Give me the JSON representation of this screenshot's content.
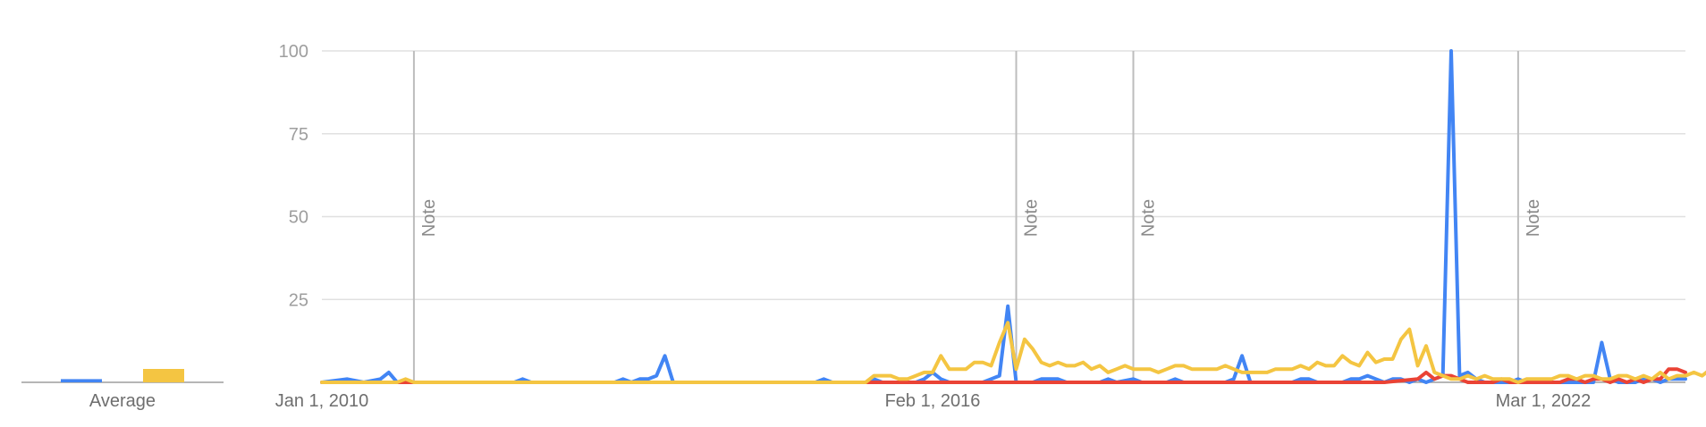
{
  "average_panel": {
    "label": "Average",
    "bars": [
      {
        "series": "blue",
        "value": 0.6
      },
      {
        "series": "yellow",
        "value": 2.5
      }
    ]
  },
  "chart_data": {
    "type": "line",
    "title": "",
    "xlabel": "",
    "ylabel": "",
    "ylim": [
      0,
      100
    ],
    "y_ticks": [
      "100",
      "75",
      "50",
      "25"
    ],
    "x_tick_labels": [
      {
        "date": "2010-01-01",
        "label": "Jan 1, 2010"
      },
      {
        "date": "2016-02-01",
        "label": "Feb 1, 2016"
      },
      {
        "date": "2022-03-01",
        "label": "Mar 1, 2022"
      }
    ],
    "x_range": [
      "2010-01-01",
      "2023-08-01"
    ],
    "grid": true,
    "annotations": [
      {
        "date": "2010-12-01",
        "label": "Note"
      },
      {
        "date": "2016-12-01",
        "label": "Note"
      },
      {
        "date": "2018-02-01",
        "label": "Note"
      },
      {
        "date": "2021-12-01",
        "label": "Note"
      }
    ],
    "series": [
      {
        "color": "#4285F4",
        "points": [
          [
            "2010-01",
            0
          ],
          [
            "2010-04",
            1
          ],
          [
            "2010-06",
            0
          ],
          [
            "2010-08",
            1
          ],
          [
            "2010-09",
            3
          ],
          [
            "2010-10",
            0
          ],
          [
            "2011-12",
            0
          ],
          [
            "2012-01",
            1
          ],
          [
            "2012-02",
            0
          ],
          [
            "2012-12",
            0
          ],
          [
            "2013-01",
            1
          ],
          [
            "2013-02",
            0
          ],
          [
            "2013-03",
            1
          ],
          [
            "2013-04",
            1
          ],
          [
            "2013-05",
            2
          ],
          [
            "2013-06",
            8
          ],
          [
            "2013-07",
            0
          ],
          [
            "2014-12",
            0
          ],
          [
            "2015-01",
            1
          ],
          [
            "2015-02",
            0
          ],
          [
            "2015-06",
            0
          ],
          [
            "2015-07",
            1
          ],
          [
            "2015-08",
            0
          ],
          [
            "2015-12",
            0
          ],
          [
            "2016-01",
            1
          ],
          [
            "2016-02",
            3
          ],
          [
            "2016-03",
            1
          ],
          [
            "2016-04",
            0
          ],
          [
            "2016-08",
            0
          ],
          [
            "2016-09",
            1
          ],
          [
            "2016-10",
            2
          ],
          [
            "2016-11",
            23
          ],
          [
            "2016-12",
            0
          ],
          [
            "2017-02",
            0
          ],
          [
            "2017-03",
            1
          ],
          [
            "2017-04",
            1
          ],
          [
            "2017-05",
            1
          ],
          [
            "2017-06",
            0
          ],
          [
            "2017-10",
            0
          ],
          [
            "2017-11",
            1
          ],
          [
            "2017-12",
            0
          ],
          [
            "2018-02",
            1
          ],
          [
            "2018-03",
            0
          ],
          [
            "2018-06",
            0
          ],
          [
            "2018-07",
            1
          ],
          [
            "2018-08",
            0
          ],
          [
            "2019-01",
            0
          ],
          [
            "2019-02",
            1
          ],
          [
            "2019-03",
            8
          ],
          [
            "2019-04",
            0
          ],
          [
            "2019-09",
            0
          ],
          [
            "2019-10",
            1
          ],
          [
            "2019-11",
            1
          ],
          [
            "2019-12",
            0
          ],
          [
            "2020-03",
            0
          ],
          [
            "2020-04",
            1
          ],
          [
            "2020-05",
            1
          ],
          [
            "2020-06",
            2
          ],
          [
            "2020-07",
            1
          ],
          [
            "2020-08",
            0
          ],
          [
            "2020-09",
            1
          ],
          [
            "2020-10",
            1
          ],
          [
            "2020-11",
            0
          ],
          [
            "2020-12",
            1
          ],
          [
            "2021-01",
            0
          ],
          [
            "2021-02",
            1
          ],
          [
            "2021-03",
            2
          ],
          [
            "2021-04",
            100
          ],
          [
            "2021-05",
            2
          ],
          [
            "2021-06",
            3
          ],
          [
            "2021-07",
            1
          ],
          [
            "2021-08",
            0
          ],
          [
            "2021-11",
            0
          ],
          [
            "2021-12",
            1
          ],
          [
            "2022-01",
            0
          ],
          [
            "2022-09",
            0
          ],
          [
            "2022-10",
            12
          ],
          [
            "2022-11",
            1
          ],
          [
            "2022-12",
            0
          ],
          [
            "2023-02",
            0
          ],
          [
            "2023-03",
            1
          ],
          [
            "2023-04",
            1
          ],
          [
            "2023-05",
            0
          ],
          [
            "2023-06",
            1
          ],
          [
            "2023-07",
            1
          ],
          [
            "2023-08",
            1
          ]
        ]
      },
      {
        "color": "#EA4335",
        "points": [
          [
            "2010-01",
            0
          ],
          [
            "2015-06",
            0
          ],
          [
            "2016-06",
            0
          ],
          [
            "2016-07",
            0
          ],
          [
            "2020-08",
            0
          ],
          [
            "2020-12",
            1
          ],
          [
            "2021-01",
            3
          ],
          [
            "2021-02",
            1
          ],
          [
            "2021-03",
            2
          ],
          [
            "2021-04",
            2
          ],
          [
            "2021-05",
            1
          ],
          [
            "2021-06",
            0
          ],
          [
            "2021-09",
            0
          ],
          [
            "2021-10",
            1
          ],
          [
            "2021-11",
            0
          ],
          [
            "2022-05",
            0
          ],
          [
            "2022-06",
            1
          ],
          [
            "2022-07",
            1
          ],
          [
            "2022-08",
            0
          ],
          [
            "2022-09",
            1
          ],
          [
            "2022-10",
            1
          ],
          [
            "2022-11",
            0
          ],
          [
            "2022-12",
            1
          ],
          [
            "2023-01",
            0
          ],
          [
            "2023-02",
            1
          ],
          [
            "2023-03",
            0
          ],
          [
            "2023-04",
            1
          ],
          [
            "2023-05",
            1
          ],
          [
            "2023-06",
            4
          ],
          [
            "2023-07",
            4
          ],
          [
            "2023-08",
            3
          ]
        ]
      },
      {
        "color": "#F4C542",
        "points": [
          [
            "2010-01",
            0
          ],
          [
            "2010-10",
            0
          ],
          [
            "2010-11",
            1
          ],
          [
            "2010-12",
            0
          ],
          [
            "2015-06",
            0
          ],
          [
            "2015-07",
            2
          ],
          [
            "2015-08",
            2
          ],
          [
            "2015-09",
            2
          ],
          [
            "2015-10",
            1
          ],
          [
            "2015-11",
            1
          ],
          [
            "2015-12",
            2
          ],
          [
            "2016-01",
            3
          ],
          [
            "2016-02",
            3
          ],
          [
            "2016-03",
            8
          ],
          [
            "2016-04",
            4
          ],
          [
            "2016-05",
            4
          ],
          [
            "2016-06",
            4
          ],
          [
            "2016-07",
            6
          ],
          [
            "2016-08",
            6
          ],
          [
            "2016-09",
            5
          ],
          [
            "2016-10",
            12
          ],
          [
            "2016-11",
            18
          ],
          [
            "2016-12",
            4
          ],
          [
            "2017-01",
            13
          ],
          [
            "2017-02",
            10
          ],
          [
            "2017-03",
            6
          ],
          [
            "2017-04",
            5
          ],
          [
            "2017-05",
            6
          ],
          [
            "2017-06",
            5
          ],
          [
            "2017-07",
            5
          ],
          [
            "2017-08",
            6
          ],
          [
            "2017-09",
            4
          ],
          [
            "2017-10",
            5
          ],
          [
            "2017-11",
            3
          ],
          [
            "2017-12",
            4
          ],
          [
            "2018-01",
            5
          ],
          [
            "2018-02",
            4
          ],
          [
            "2018-03",
            4
          ],
          [
            "2018-04",
            4
          ],
          [
            "2018-05",
            3
          ],
          [
            "2018-06",
            4
          ],
          [
            "2018-07",
            5
          ],
          [
            "2018-08",
            5
          ],
          [
            "2018-09",
            4
          ],
          [
            "2018-10",
            4
          ],
          [
            "2018-11",
            4
          ],
          [
            "2018-12",
            4
          ],
          [
            "2019-01",
            5
          ],
          [
            "2019-02",
            4
          ],
          [
            "2019-03",
            3
          ],
          [
            "2019-04",
            3
          ],
          [
            "2019-05",
            3
          ],
          [
            "2019-06",
            3
          ],
          [
            "2019-07",
            4
          ],
          [
            "2019-08",
            4
          ],
          [
            "2019-09",
            4
          ],
          [
            "2019-10",
            5
          ],
          [
            "2019-11",
            4
          ],
          [
            "2019-12",
            6
          ],
          [
            "2020-01",
            5
          ],
          [
            "2020-02",
            5
          ],
          [
            "2020-03",
            8
          ],
          [
            "2020-04",
            6
          ],
          [
            "2020-05",
            5
          ],
          [
            "2020-06",
            9
          ],
          [
            "2020-07",
            6
          ],
          [
            "2020-08",
            7
          ],
          [
            "2020-09",
            7
          ],
          [
            "2020-10",
            13
          ],
          [
            "2020-11",
            16
          ],
          [
            "2020-12",
            5
          ],
          [
            "2021-01",
            11
          ],
          [
            "2021-02",
            3
          ],
          [
            "2021-03",
            2
          ],
          [
            "2021-04",
            1
          ],
          [
            "2021-05",
            1
          ],
          [
            "2021-06",
            2
          ],
          [
            "2021-07",
            1
          ],
          [
            "2021-08",
            2
          ],
          [
            "2021-09",
            1
          ],
          [
            "2021-10",
            1
          ],
          [
            "2021-11",
            1
          ],
          [
            "2021-12",
            0
          ],
          [
            "2022-01",
            1
          ],
          [
            "2022-02",
            1
          ],
          [
            "2022-03",
            1
          ],
          [
            "2022-04",
            1
          ],
          [
            "2022-05",
            2
          ],
          [
            "2022-06",
            2
          ],
          [
            "2022-07",
            1
          ],
          [
            "2022-08",
            2
          ],
          [
            "2022-09",
            2
          ],
          [
            "2022-10",
            1
          ],
          [
            "2022-11",
            1
          ],
          [
            "2022-12",
            2
          ],
          [
            "2023-01",
            2
          ],
          [
            "2023-02",
            1
          ],
          [
            "2023-03",
            2
          ],
          [
            "2023-04",
            1
          ],
          [
            "2023-05",
            3
          ],
          [
            "2023-06",
            1
          ],
          [
            "2023-07",
            2
          ],
          [
            "2023-08",
            2
          ],
          [
            "2023-09",
            3
          ],
          [
            "2023-10",
            2
          ],
          [
            "2023-11",
            4
          ],
          [
            "2023-12",
            3
          ],
          [
            "2024-01",
            13
          ],
          [
            "2024-02",
            4
          ],
          [
            "2024-03",
            6
          ]
        ]
      }
    ]
  }
}
